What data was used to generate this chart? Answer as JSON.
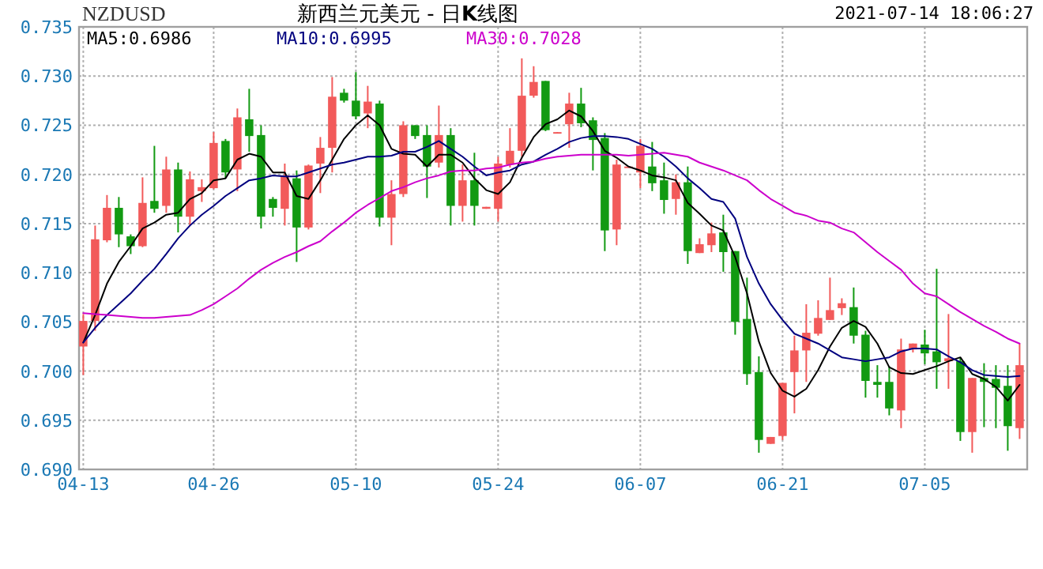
{
  "chart_data": {
    "type": "candlestick",
    "title": "新西兰元美元 - 日**K**线图",
    "subtitle": "NZDUSD",
    "annotations": [
      "2021-07-14 18:06:27"
    ],
    "categories": [
      "04-13",
      null,
      null,
      null,
      null,
      null,
      null,
      null,
      null,
      null,
      null,
      "04-26",
      null,
      null,
      null,
      null,
      null,
      null,
      null,
      null,
      null,
      null,
      null,
      "05-10",
      null,
      null,
      null,
      null,
      null,
      null,
      null,
      null,
      null,
      null,
      null,
      "05-24",
      null,
      null,
      null,
      null,
      null,
      null,
      null,
      null,
      null,
      null,
      null,
      "06-07",
      null,
      null,
      null,
      null,
      null,
      null,
      null,
      null,
      null,
      null,
      null,
      "06-21",
      null,
      null,
      null,
      null,
      null,
      null,
      null,
      null,
      null,
      null,
      null,
      "07-05",
      null,
      null,
      null,
      null,
      null,
      null,
      null,
      null
    ],
    "ohlc": [
      [
        0.7025,
        0.7058,
        0.6996,
        0.7051
      ],
      [
        0.7051,
        0.7148,
        0.7041,
        0.7134
      ],
      [
        0.7133,
        0.7179,
        0.7131,
        0.7166
      ],
      [
        0.7166,
        0.7177,
        0.7126,
        0.7139
      ],
      [
        0.7137,
        0.7139,
        0.7119,
        0.7127
      ],
      [
        0.7127,
        0.7197,
        0.7126,
        0.7171
      ],
      [
        0.7173,
        0.7229,
        0.7161,
        0.7165
      ],
      [
        0.7168,
        0.7218,
        0.7161,
        0.7205
      ],
      [
        0.7205,
        0.7212,
        0.7141,
        0.7157
      ],
      [
        0.7157,
        0.7203,
        0.7148,
        0.7195
      ],
      [
        0.7183,
        0.7195,
        0.7172,
        0.7187
      ],
      [
        0.7186,
        0.7243,
        0.7185,
        0.7232
      ],
      [
        0.7234,
        0.7236,
        0.7196,
        0.7202
      ],
      [
        0.7205,
        0.7267,
        0.7183,
        0.7258
      ],
      [
        0.7256,
        0.7287,
        0.7223,
        0.7239
      ],
      [
        0.724,
        0.725,
        0.7145,
        0.7157
      ],
      [
        0.7175,
        0.7177,
        0.7157,
        0.7166
      ],
      [
        0.7165,
        0.7211,
        0.7148,
        0.7199
      ],
      [
        0.7196,
        0.7204,
        0.7111,
        0.7146
      ],
      [
        0.7146,
        0.721,
        0.7144,
        0.7209
      ],
      [
        0.7211,
        0.7238,
        0.7181,
        0.7227
      ],
      [
        0.7227,
        0.7299,
        0.7202,
        0.7279
      ],
      [
        0.7283,
        0.7287,
        0.7273,
        0.7275
      ],
      [
        0.7275,
        0.7304,
        0.7256,
        0.7259
      ],
      [
        0.7262,
        0.729,
        0.7247,
        0.7274
      ],
      [
        0.7272,
        0.7275,
        0.7147,
        0.7156
      ],
      [
        0.7156,
        0.7194,
        0.7128,
        0.718
      ],
      [
        0.718,
        0.7254,
        0.7177,
        0.725
      ],
      [
        0.725,
        0.725,
        0.7236,
        0.7239
      ],
      [
        0.724,
        0.725,
        0.7176,
        0.7208
      ],
      [
        0.7212,
        0.727,
        0.7207,
        0.724
      ],
      [
        0.724,
        0.7247,
        0.7148,
        0.7168
      ],
      [
        0.7168,
        0.721,
        0.7152,
        0.7194
      ],
      [
        0.7194,
        0.7222,
        0.7148,
        0.7168
      ],
      [
        0.7165,
        0.7167,
        0.7165,
        0.7167
      ],
      [
        0.7165,
        0.7218,
        0.7152,
        0.7211
      ],
      [
        0.721,
        0.7247,
        0.7207,
        0.7224
      ],
      [
        0.7224,
        0.7318,
        0.7218,
        0.728
      ],
      [
        0.728,
        0.731,
        0.7278,
        0.7294
      ],
      [
        0.7295,
        0.7295,
        0.7244,
        0.7245
      ],
      [
        0.7242,
        0.7243,
        0.7242,
        0.7243
      ],
      [
        0.7251,
        0.7283,
        0.7227,
        0.7272
      ],
      [
        0.7272,
        0.7288,
        0.7248,
        0.7252
      ],
      [
        0.7255,
        0.7258,
        0.7204,
        0.7235
      ],
      [
        0.7237,
        0.7242,
        0.7122,
        0.7143
      ],
      [
        0.7144,
        0.7215,
        0.7128,
        0.721
      ],
      [
        0.7207,
        0.7208,
        0.7207,
        0.7208
      ],
      [
        0.7202,
        0.7236,
        0.7186,
        0.7229
      ],
      [
        0.7208,
        0.7233,
        0.7183,
        0.7191
      ],
      [
        0.7194,
        0.7212,
        0.716,
        0.7174
      ],
      [
        0.7175,
        0.72,
        0.7159,
        0.7192
      ],
      [
        0.7192,
        0.7208,
        0.7109,
        0.7122
      ],
      [
        0.712,
        0.7135,
        0.712,
        0.7129
      ],
      [
        0.7128,
        0.7151,
        0.7121,
        0.714
      ],
      [
        0.7141,
        0.7159,
        0.7101,
        0.7121
      ],
      [
        0.7122,
        0.7122,
        0.7037,
        0.705
      ],
      [
        0.7053,
        0.7095,
        0.6986,
        0.6997
      ],
      [
        0.6999,
        0.7015,
        0.6917,
        0.693
      ],
      [
        0.6926,
        0.6933,
        0.6926,
        0.6933
      ],
      [
        0.6934,
        0.6988,
        0.693,
        0.6988
      ],
      [
        0.6999,
        0.7036,
        0.6957,
        0.7021
      ],
      [
        0.7021,
        0.7068,
        0.6989,
        0.7039
      ],
      [
        0.7038,
        0.7072,
        0.7036,
        0.7054
      ],
      [
        0.7052,
        0.7095,
        0.7052,
        0.7062
      ],
      [
        0.7064,
        0.7074,
        0.7057,
        0.7069
      ],
      [
        0.7065,
        0.7085,
        0.7028,
        0.7036
      ],
      [
        0.7037,
        0.7041,
        0.6973,
        0.699
      ],
      [
        0.6989,
        0.7006,
        0.6973,
        0.6986
      ],
      [
        0.6989,
        0.7005,
        0.6955,
        0.6962
      ],
      [
        0.696,
        0.7033,
        0.6942,
        0.7022
      ],
      [
        0.7022,
        0.7028,
        0.7019,
        0.7028
      ],
      [
        0.7027,
        0.7042,
        0.7007,
        0.7018
      ],
      [
        0.702,
        0.7104,
        0.6982,
        0.7009
      ],
      [
        0.701,
        0.7058,
        0.6982,
        0.7013
      ],
      [
        0.701,
        0.7014,
        0.6929,
        0.6938
      ],
      [
        0.6938,
        0.6993,
        0.6917,
        0.6993
      ],
      [
        0.6993,
        0.7008,
        0.6943,
        0.6989
      ],
      [
        0.6992,
        0.7006,
        0.6942,
        0.6983
      ],
      [
        0.6985,
        0.7006,
        0.6919,
        0.6944
      ],
      [
        0.6942,
        0.7028,
        0.6931,
        0.7006
      ]
    ],
    "colors": [
      "#f25a5a",
      "#f25a5a",
      "#f25a5a",
      "#129a12",
      "#129a12",
      "#f25a5a",
      "#129a12",
      "#f25a5a",
      "#129a12",
      "#f25a5a",
      "#f25a5a",
      "#f25a5a",
      "#129a12",
      "#f25a5a",
      "#129a12",
      "#129a12",
      "#129a12",
      "#f25a5a",
      "#129a12",
      "#f25a5a",
      "#f25a5a",
      "#f25a5a",
      "#129a12",
      "#129a12",
      "#f25a5a",
      "#129a12",
      "#f25a5a",
      "#f25a5a",
      "#129a12",
      "#129a12",
      "#f25a5a",
      "#129a12",
      "#f25a5a",
      "#129a12",
      "#f25a5a",
      "#f25a5a",
      "#f25a5a",
      "#f25a5a",
      "#f25a5a",
      "#129a12",
      "#f25a5a",
      "#f25a5a",
      "#129a12",
      "#129a12",
      "#129a12",
      "#f25a5a",
      "#f25a5a",
      "#f25a5a",
      "#129a12",
      "#129a12",
      "#f25a5a",
      "#129a12",
      "#f25a5a",
      "#f25a5a",
      "#129a12",
      "#129a12",
      "#129a12",
      "#129a12",
      "#f25a5a",
      "#f25a5a",
      "#f25a5a",
      "#f25a5a",
      "#f25a5a",
      "#f25a5a",
      "#f25a5a",
      "#129a12",
      "#129a12",
      "#129a12",
      "#129a12",
      "#f25a5a",
      "#f25a5a",
      "#129a12",
      "#129a12",
      "#f25a5a",
      "#129a12",
      "#f25a5a",
      "#129a12",
      "#129a12",
      "#129a12",
      "#f25a5a"
    ],
    "series": [
      {
        "type": "line",
        "name": "MA5:0.6986",
        "color": "#000000",
        "values": [
          0.7029,
          0.7057,
          0.7089,
          0.7111,
          0.7127,
          0.7145,
          0.7151,
          0.7159,
          0.7161,
          0.7175,
          0.7181,
          0.7194,
          0.7196,
          0.7215,
          0.7221,
          0.7218,
          0.7202,
          0.7202,
          0.7178,
          0.7175,
          0.7194,
          0.7215,
          0.7236,
          0.725,
          0.726,
          0.725,
          0.7226,
          0.7221,
          0.722,
          0.7208,
          0.722,
          0.722,
          0.7212,
          0.7196,
          0.7184,
          0.718,
          0.7192,
          0.7217,
          0.7238,
          0.7251,
          0.7256,
          0.7265,
          0.7259,
          0.7244,
          0.7224,
          0.7217,
          0.7208,
          0.7204,
          0.7199,
          0.7197,
          0.7194,
          0.7171,
          0.716,
          0.7148,
          0.7143,
          0.7116,
          0.7079,
          0.703,
          0.6998,
          0.698,
          0.6974,
          0.6982,
          0.7001,
          0.7025,
          0.7044,
          0.7051,
          0.7045,
          0.7028,
          0.7004,
          0.6998,
          0.6997,
          0.7001,
          0.7005,
          0.701,
          0.7014,
          0.6997,
          0.6992,
          0.6984,
          0.697,
          0.6986
        ]
      },
      {
        "type": "line",
        "name": "MA10:0.6995",
        "color": "#00007f",
        "values": [
          0.7029,
          0.7044,
          0.7057,
          0.7068,
          0.7079,
          0.7092,
          0.7104,
          0.7119,
          0.7135,
          0.7148,
          0.7159,
          0.7168,
          0.7178,
          0.7186,
          0.7194,
          0.7196,
          0.7199,
          0.7198,
          0.7198,
          0.7202,
          0.7206,
          0.721,
          0.7212,
          0.7215,
          0.7218,
          0.7218,
          0.7219,
          0.7223,
          0.7223,
          0.7228,
          0.7234,
          0.7226,
          0.7218,
          0.7208,
          0.7199,
          0.7202,
          0.7204,
          0.721,
          0.7213,
          0.722,
          0.7226,
          0.7233,
          0.7237,
          0.7239,
          0.7239,
          0.7238,
          0.7236,
          0.7231,
          0.7226,
          0.7218,
          0.7208,
          0.7196,
          0.7186,
          0.7175,
          0.7172,
          0.7155,
          0.7116,
          0.7089,
          0.7068,
          0.7052,
          0.7038,
          0.7033,
          0.7028,
          0.7021,
          0.7014,
          0.7012,
          0.701,
          0.7012,
          0.7014,
          0.702,
          0.7023,
          0.7023,
          0.7022,
          0.7015,
          0.7009,
          0.7001,
          0.6996,
          0.6995,
          0.6994,
          0.6995
        ]
      },
      {
        "type": "line",
        "name": "MA30:0.7028",
        "color": "#cc00cc",
        "values": [
          0.7059,
          0.7058,
          0.7057,
          0.7056,
          0.7055,
          0.7054,
          0.7054,
          0.7055,
          0.7056,
          0.7057,
          0.7062,
          0.7068,
          0.7076,
          0.7084,
          0.7094,
          0.7103,
          0.711,
          0.7116,
          0.7121,
          0.7127,
          0.7132,
          0.7142,
          0.7151,
          0.7161,
          0.7169,
          0.7176,
          0.7183,
          0.7187,
          0.7192,
          0.7196,
          0.7199,
          0.7203,
          0.7204,
          0.7204,
          0.7206,
          0.7207,
          0.721,
          0.7212,
          0.7213,
          0.7216,
          0.7218,
          0.7219,
          0.722,
          0.722,
          0.722,
          0.722,
          0.7219,
          0.722,
          0.7221,
          0.7222,
          0.722,
          0.7218,
          0.7212,
          0.7208,
          0.7204,
          0.7199,
          0.7194,
          0.7184,
          0.7175,
          0.7168,
          0.7161,
          0.7158,
          0.7153,
          0.7151,
          0.7145,
          0.7141,
          0.7131,
          0.7121,
          0.7112,
          0.7103,
          0.7089,
          0.7079,
          0.7076,
          0.7068,
          0.706,
          0.7053,
          0.7046,
          0.704,
          0.7033,
          0.7028
        ]
      }
    ],
    "ylim": [
      0.69,
      0.735
    ],
    "yticks": [
      {
        "value": 0.69,
        "label": "0.690"
      },
      0.695,
      {
        "value": 0.7,
        "label": "0.700"
      },
      0.705,
      {
        "value": 0.71,
        "label": "0.710"
      },
      0.715,
      {
        "value": 0.72,
        "label": "0.720"
      },
      0.725,
      {
        "value": 0.73,
        "label": "0.730"
      },
      0.735
    ],
    "grid": true,
    "legend": "top left"
  }
}
